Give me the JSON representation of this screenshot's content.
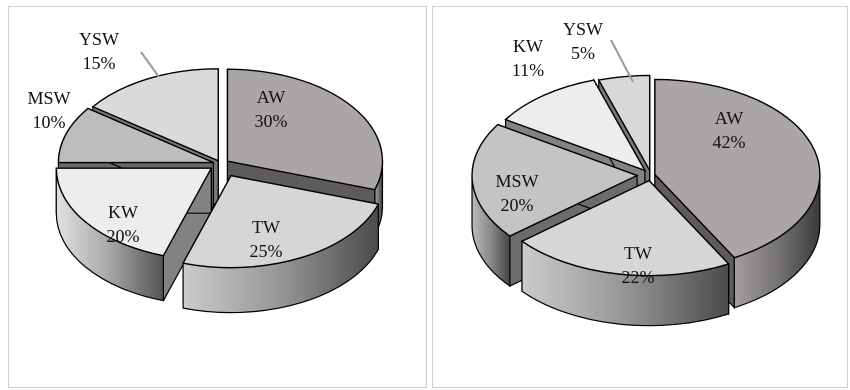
{
  "chart_data": [
    {
      "type": "pie",
      "style": "3d-exploded",
      "categories": [
        "AW",
        "TW",
        "KW",
        "MSW",
        "YSW"
      ],
      "values": [
        30,
        25,
        20,
        10,
        15
      ],
      "labels": [
        "30%",
        "25%",
        "20%",
        "10%",
        "15%"
      ],
      "colors": [
        "#aaa6a6",
        "#d6d6d6",
        "#ededed",
        "#bdbdbd",
        "#dadada"
      ],
      "title": ""
    },
    {
      "type": "pie",
      "style": "3d-exploded",
      "categories": [
        "AW",
        "TW",
        "MSW",
        "KW",
        "YSW"
      ],
      "values": [
        42,
        22,
        20,
        11,
        5
      ],
      "labels": [
        "42%",
        "22%",
        "20%",
        "11%",
        "5%"
      ],
      "colors": [
        "#aaa6a6",
        "#d6d6d6",
        "#c4c4c4",
        "#ededed",
        "#d8d8d8"
      ],
      "title": ""
    }
  ]
}
